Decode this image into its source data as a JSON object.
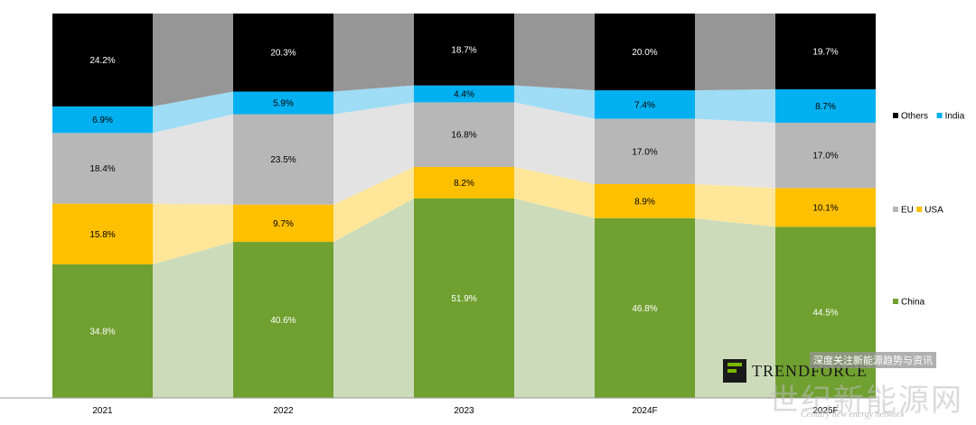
{
  "chart_data": {
    "type": "bar",
    "stacked": true,
    "normalized": true,
    "categories": [
      "2021",
      "2022",
      "2023",
      "2024F",
      "2025F"
    ],
    "series": [
      {
        "name": "China",
        "color": "#70a030",
        "band_color": "#ccdcba",
        "values": [
          34.8,
          40.6,
          51.9,
          46.8,
          44.5
        ]
      },
      {
        "name": "USA",
        "color": "#ffc000",
        "band_color": "#ffe699",
        "values": [
          15.8,
          9.7,
          8.2,
          8.9,
          10.1
        ]
      },
      {
        "name": "EU",
        "color": "#b7b7b7",
        "band_color": "#e3e3e3",
        "values": [
          18.4,
          23.5,
          16.8,
          17.0,
          17.0
        ]
      },
      {
        "name": "India",
        "color": "#00b0f0",
        "band_color": "#9fdcf5",
        "values": [
          6.9,
          5.9,
          4.4,
          7.4,
          8.7
        ]
      },
      {
        "name": "Others",
        "color": "#000000",
        "band_color": "#969696",
        "values": [
          24.2,
          20.3,
          18.7,
          20.0,
          19.7
        ]
      }
    ],
    "data_labels": {
      "China": [
        "34.8%",
        "40.6%",
        "51.9%",
        "46.8%",
        "44.5%"
      ],
      "USA": [
        "15.8%",
        "9.7%",
        "8.2%",
        "8.9%",
        "10.1%"
      ],
      "EU": [
        "18.4%",
        "23.5%",
        "16.8%",
        "17.0%",
        "17.0%"
      ],
      "India": [
        "6.9%",
        "5.9%",
        "4.4%",
        "7.4%",
        "8.7%"
      ],
      "Others": [
        "24.2%",
        "20.3%",
        "18.7%",
        "20.0%",
        "19.7%"
      ]
    },
    "label_colors": {
      "China": "#ffffff",
      "USA": "#000000",
      "EU": "#000000",
      "India": "#000000",
      "Others": "#ffffff"
    },
    "ylim": [
      0,
      100
    ],
    "grid": false,
    "legend_position": "right",
    "legend_groups": [
      [
        "Others",
        "India"
      ],
      [
        "EU",
        "USA"
      ],
      [
        "China"
      ]
    ]
  },
  "watermark": {
    "brand": "TRENDFORCE",
    "chinese_sub": "深度关注新能源趋势与资讯",
    "chinese_site": "世纪新能源网",
    "english_site": "Century new energy network"
  }
}
